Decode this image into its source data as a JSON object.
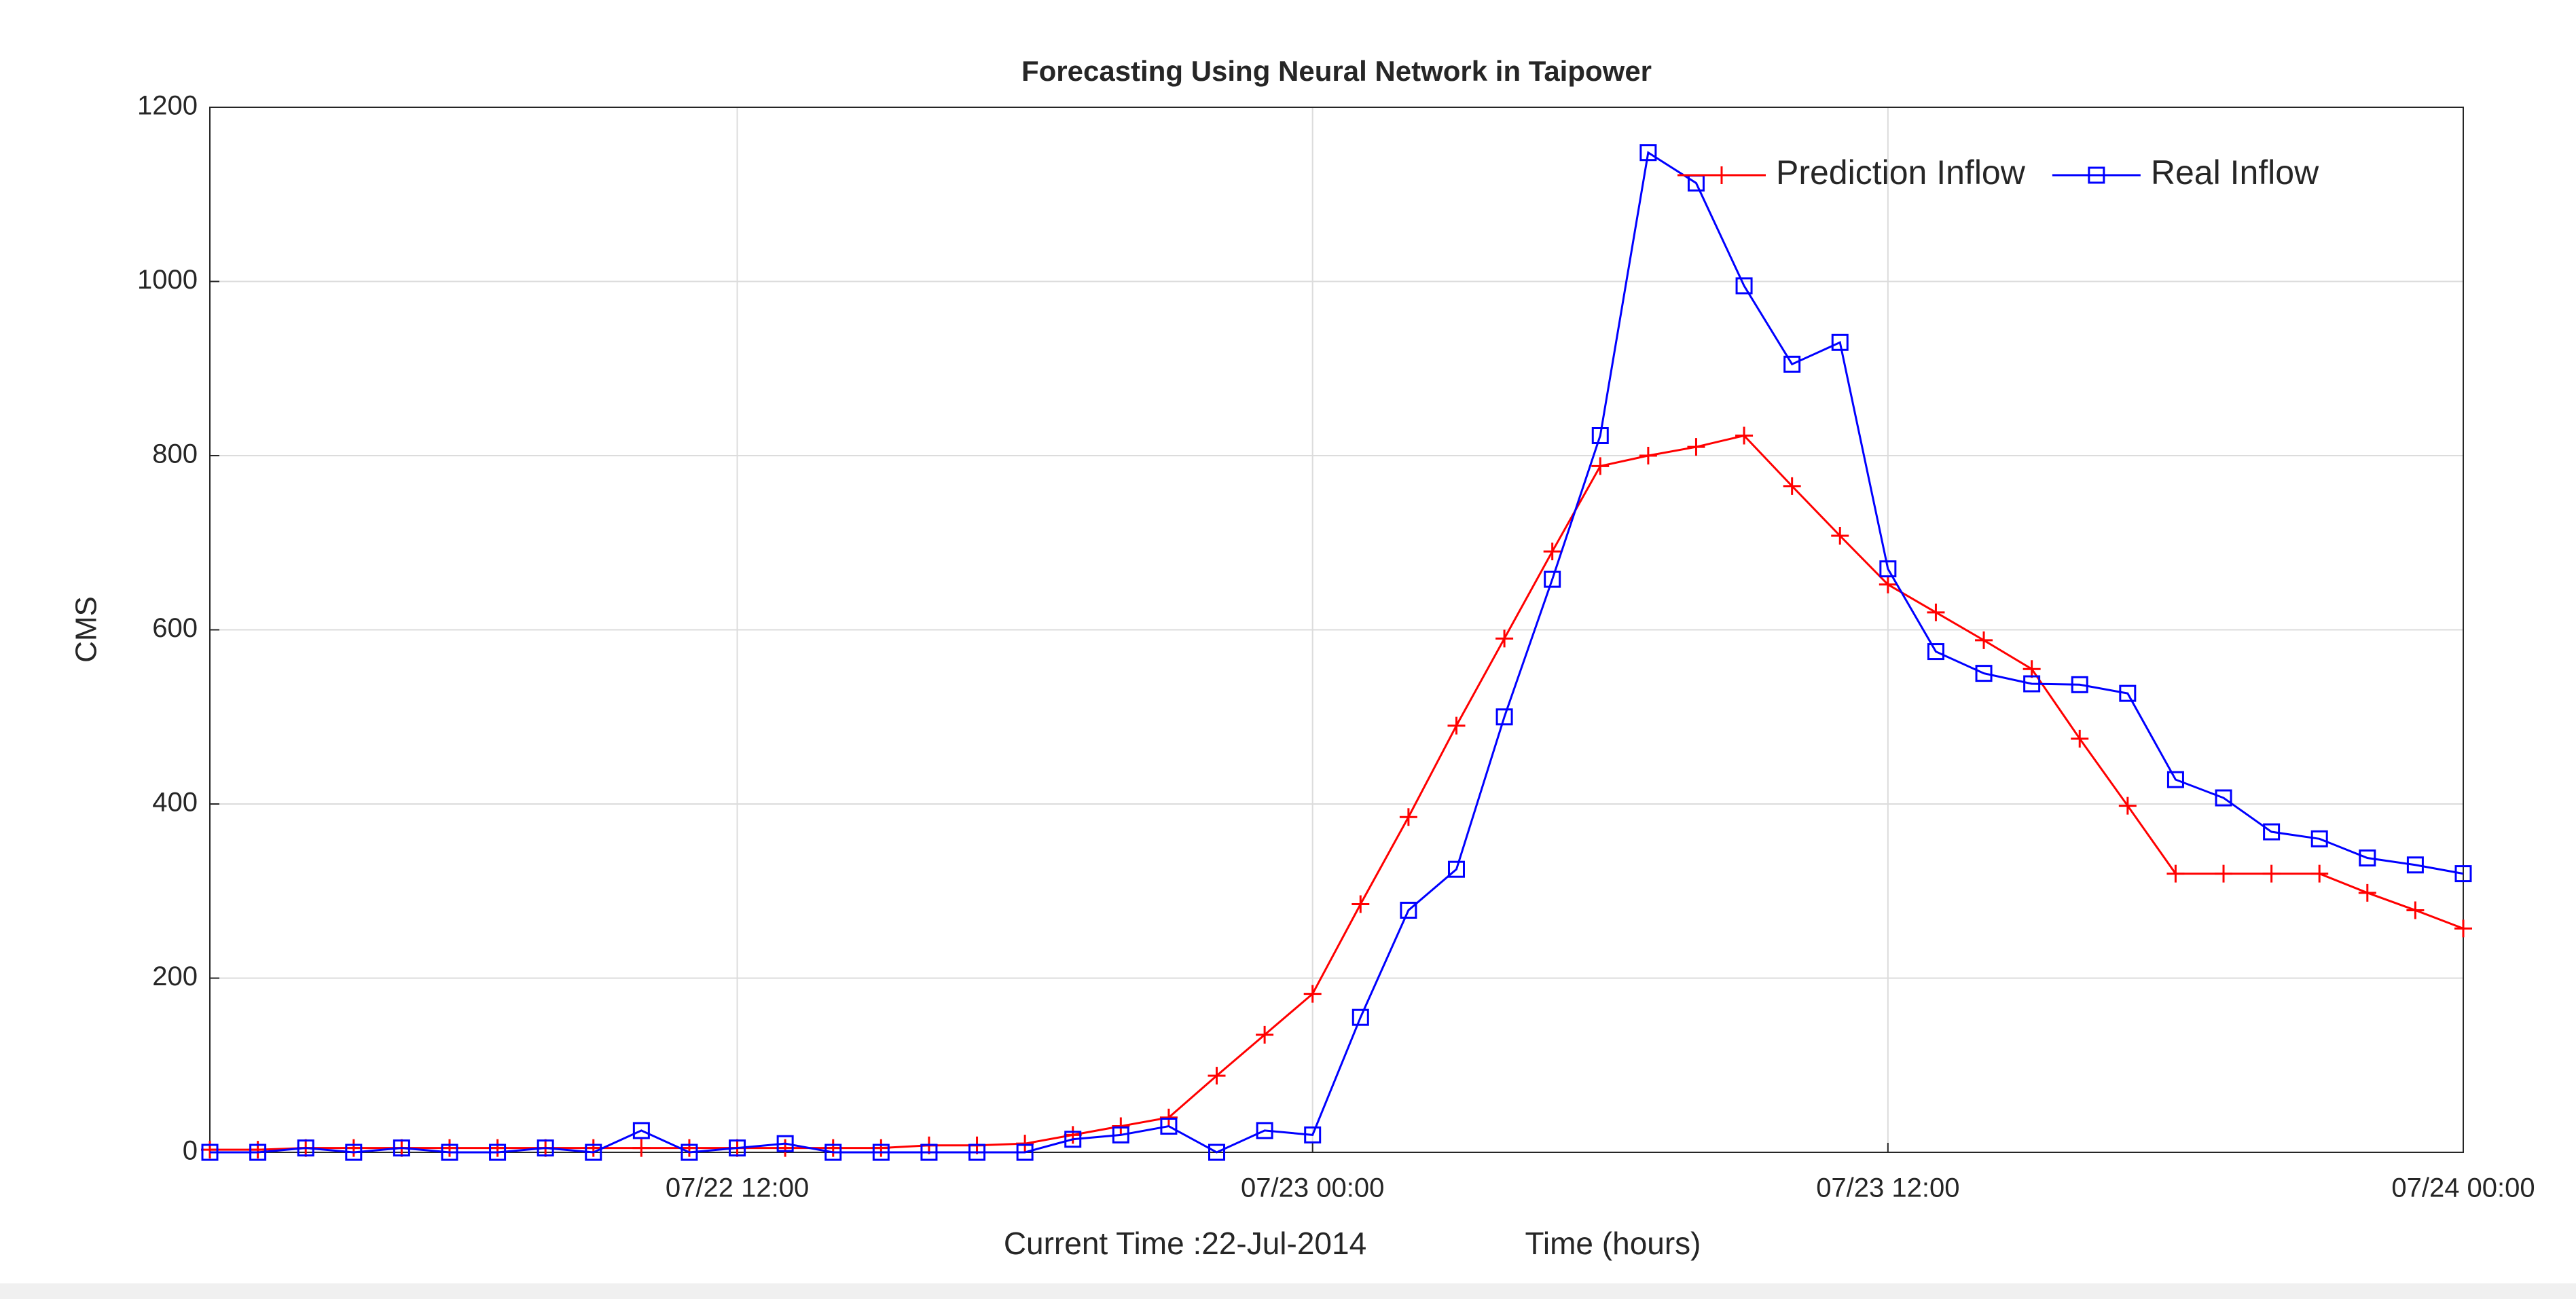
{
  "chart_data": {
    "type": "line",
    "title": "Forecasting Using Neural Network in Taipower",
    "ylabel": "CMS",
    "xlabel": "Time (hours)",
    "annotation": "Current Time :22-Jul-2014",
    "x": [
      1,
      2,
      3,
      4,
      5,
      6,
      7,
      8,
      9,
      10,
      11,
      12,
      13,
      14,
      15,
      16,
      17,
      18,
      19,
      20,
      21,
      22,
      23,
      24,
      25,
      26,
      27,
      28,
      29,
      30,
      31,
      32,
      33,
      34,
      35,
      36,
      37,
      38,
      39,
      40,
      41,
      42,
      43,
      44,
      45,
      46,
      47,
      48
    ],
    "series": [
      {
        "name": "Prediction Inflow",
        "color": "#ff0000",
        "marker": "plus",
        "values": [
          3,
          3,
          5,
          5,
          5,
          5,
          5,
          5,
          5,
          5,
          5,
          5,
          5,
          5,
          5,
          8,
          8,
          10,
          20,
          30,
          40,
          88,
          135,
          182,
          285,
          385,
          490,
          590,
          690,
          788,
          800,
          810,
          823,
          765,
          708,
          652,
          620,
          588,
          555,
          475,
          398,
          320,
          320,
          320,
          320,
          298,
          278,
          257
        ]
      },
      {
        "name": "Real Inflow",
        "color": "#0000ff",
        "marker": "square",
        "values": [
          0,
          0,
          5,
          0,
          5,
          0,
          0,
          5,
          0,
          25,
          0,
          5,
          10,
          0,
          0,
          0,
          0,
          0,
          15,
          20,
          30,
          0,
          25,
          20,
          155,
          278,
          325,
          500,
          658,
          823,
          1148,
          1113,
          995,
          905,
          930,
          670,
          575,
          550,
          538,
          537,
          527,
          428,
          407,
          368,
          360,
          338,
          330,
          320
        ]
      }
    ],
    "xlim": [
      1,
      48
    ],
    "xticks": [
      {
        "value": 12,
        "label": "07/22 12:00"
      },
      {
        "value": 24,
        "label": "07/23 00:00"
      },
      {
        "value": 36,
        "label": "07/23 12:00"
      },
      {
        "value": 48,
        "label": "07/24 00:00"
      }
    ],
    "ylim": [
      0,
      1200
    ],
    "yticks": [
      0,
      200,
      400,
      600,
      800,
      1000,
      1200
    ],
    "grid": true,
    "legend": "upper right"
  }
}
